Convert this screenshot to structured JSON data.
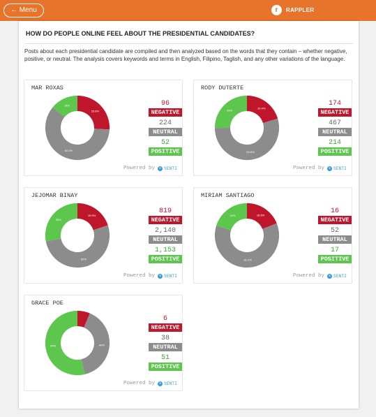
{
  "header": {
    "menu_label": "← Menu",
    "logo_text": "RAPPLER"
  },
  "article": {
    "heading": "HOW DO PEOPLE ONLINE FEEL ABOUT THE PRESIDENTIAL CANDIDATES?",
    "description": "Posts about each presidential candidate are compiled and then analyzed based on the words that they contain – whether negative, positive, or neutral. The analysis covers keywords and terms in English, Filipino, Taglish, and any other variations of the language."
  },
  "labels": {
    "negative": "NEGATIVE",
    "neutral": "NEUTRAL",
    "positive": "POSITIVE",
    "powered_by": "Powered by",
    "brand": "SENTI"
  },
  "colors": {
    "negative": "#c0162b",
    "neutral": "#8c8c8c",
    "positive": "#5cc64d"
  },
  "chart_data": [
    {
      "type": "pie",
      "title": "MAR ROXAS",
      "categories": [
        "NEGATIVE",
        "NEUTRAL",
        "POSITIVE"
      ],
      "values": [
        96,
        224,
        52
      ],
      "display_values": [
        "96",
        "224",
        "52"
      ],
      "slice_labels": [
        "25.8%",
        "60.2%",
        "14%"
      ]
    },
    {
      "type": "pie",
      "title": "RODY DUTERTE",
      "categories": [
        "NEGATIVE",
        "NEUTRAL",
        "POSITIVE"
      ],
      "values": [
        174,
        467,
        214
      ],
      "display_values": [
        "174",
        "467",
        "214"
      ],
      "slice_labels": [
        "20.4%",
        "54.6%",
        "25%"
      ]
    },
    {
      "type": "pie",
      "title": "JEJOMAR BINAY",
      "categories": [
        "NEGATIVE",
        "NEUTRAL",
        "POSITIVE"
      ],
      "values": [
        819,
        2140,
        1153
      ],
      "display_values": [
        "819",
        "2,140",
        "1,153"
      ],
      "slice_labels": [
        "19.9%",
        "52%",
        "28%"
      ]
    },
    {
      "type": "pie",
      "title": "MIRIAM SANTIAGO",
      "categories": [
        "NEGATIVE",
        "NEUTRAL",
        "POSITIVE"
      ],
      "values": [
        16,
        52,
        17
      ],
      "display_values": [
        "16",
        "52",
        "17"
      ],
      "slice_labels": [
        "18.8%",
        "61.2%",
        "20%"
      ]
    },
    {
      "type": "pie",
      "title": "GRACE POE",
      "categories": [
        "NEGATIVE",
        "NEUTRAL",
        "POSITIVE"
      ],
      "values": [
        6,
        38,
        51
      ],
      "display_values": [
        "6",
        "38",
        "51"
      ],
      "slice_labels": [
        "",
        "40%",
        "54%"
      ]
    }
  ]
}
